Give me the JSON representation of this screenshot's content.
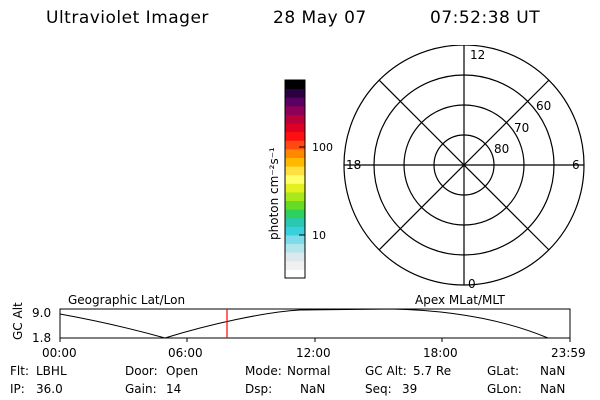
{
  "header": {
    "title": "Ultraviolet Imager",
    "date": "28 May 07",
    "time": "07:52:38 UT"
  },
  "colorbar": {
    "axis_label": "photon cm⁻²s⁻¹",
    "tick_100": "100",
    "tick_10": "10",
    "colors_bottom_to_top": [
      "#ffffff",
      "#f0f0f0",
      "#dde8ec",
      "#b4e4ec",
      "#7edcea",
      "#38d0dc",
      "#2ac8b0",
      "#30d060",
      "#66dd22",
      "#a8e81c",
      "#e4f020",
      "#ffff6a",
      "#ffe040",
      "#ffb800",
      "#ff8800",
      "#ff4a10",
      "#ff1010",
      "#dd0022",
      "#b8003a",
      "#8c0058",
      "#5a0060",
      "#2a0040",
      "#000000"
    ]
  },
  "polar": {
    "mlt_labels": {
      "top": "12",
      "left": "18",
      "right": "6",
      "bottom": "0"
    },
    "lat_labels": [
      "60",
      "70",
      "80"
    ]
  },
  "timeline": {
    "title_left": "Geographic Lat/Lon",
    "title_right": "Apex MLat/MLT",
    "ylabel": "GC Alt",
    "y_ticks": [
      "9.0",
      "1.8"
    ],
    "x_ticks": [
      "00:00",
      "06:00",
      "12:00",
      "18:00",
      "23:59"
    ],
    "marker_color": "#ff0000"
  },
  "footer": {
    "flt_label": "Flt:",
    "flt_value": "LBHL",
    "door_label": "Door:",
    "door_value": "Open",
    "mode_label": "Mode:",
    "mode_value": "Normal",
    "gcalt_label": "GC Alt:",
    "gcalt_value": "5.7 Re",
    "glat_label": "GLat:",
    "glat_value": "NaN",
    "ip_label": "IP:",
    "ip_value": "36.0",
    "gain_label": "Gain:",
    "gain_value": "14",
    "dsp_label": "Dsp:",
    "dsp_value": "NaN",
    "seq_label": "Seq:",
    "seq_value": "39",
    "glon_label": "GLon:",
    "glon_value": "NaN"
  }
}
